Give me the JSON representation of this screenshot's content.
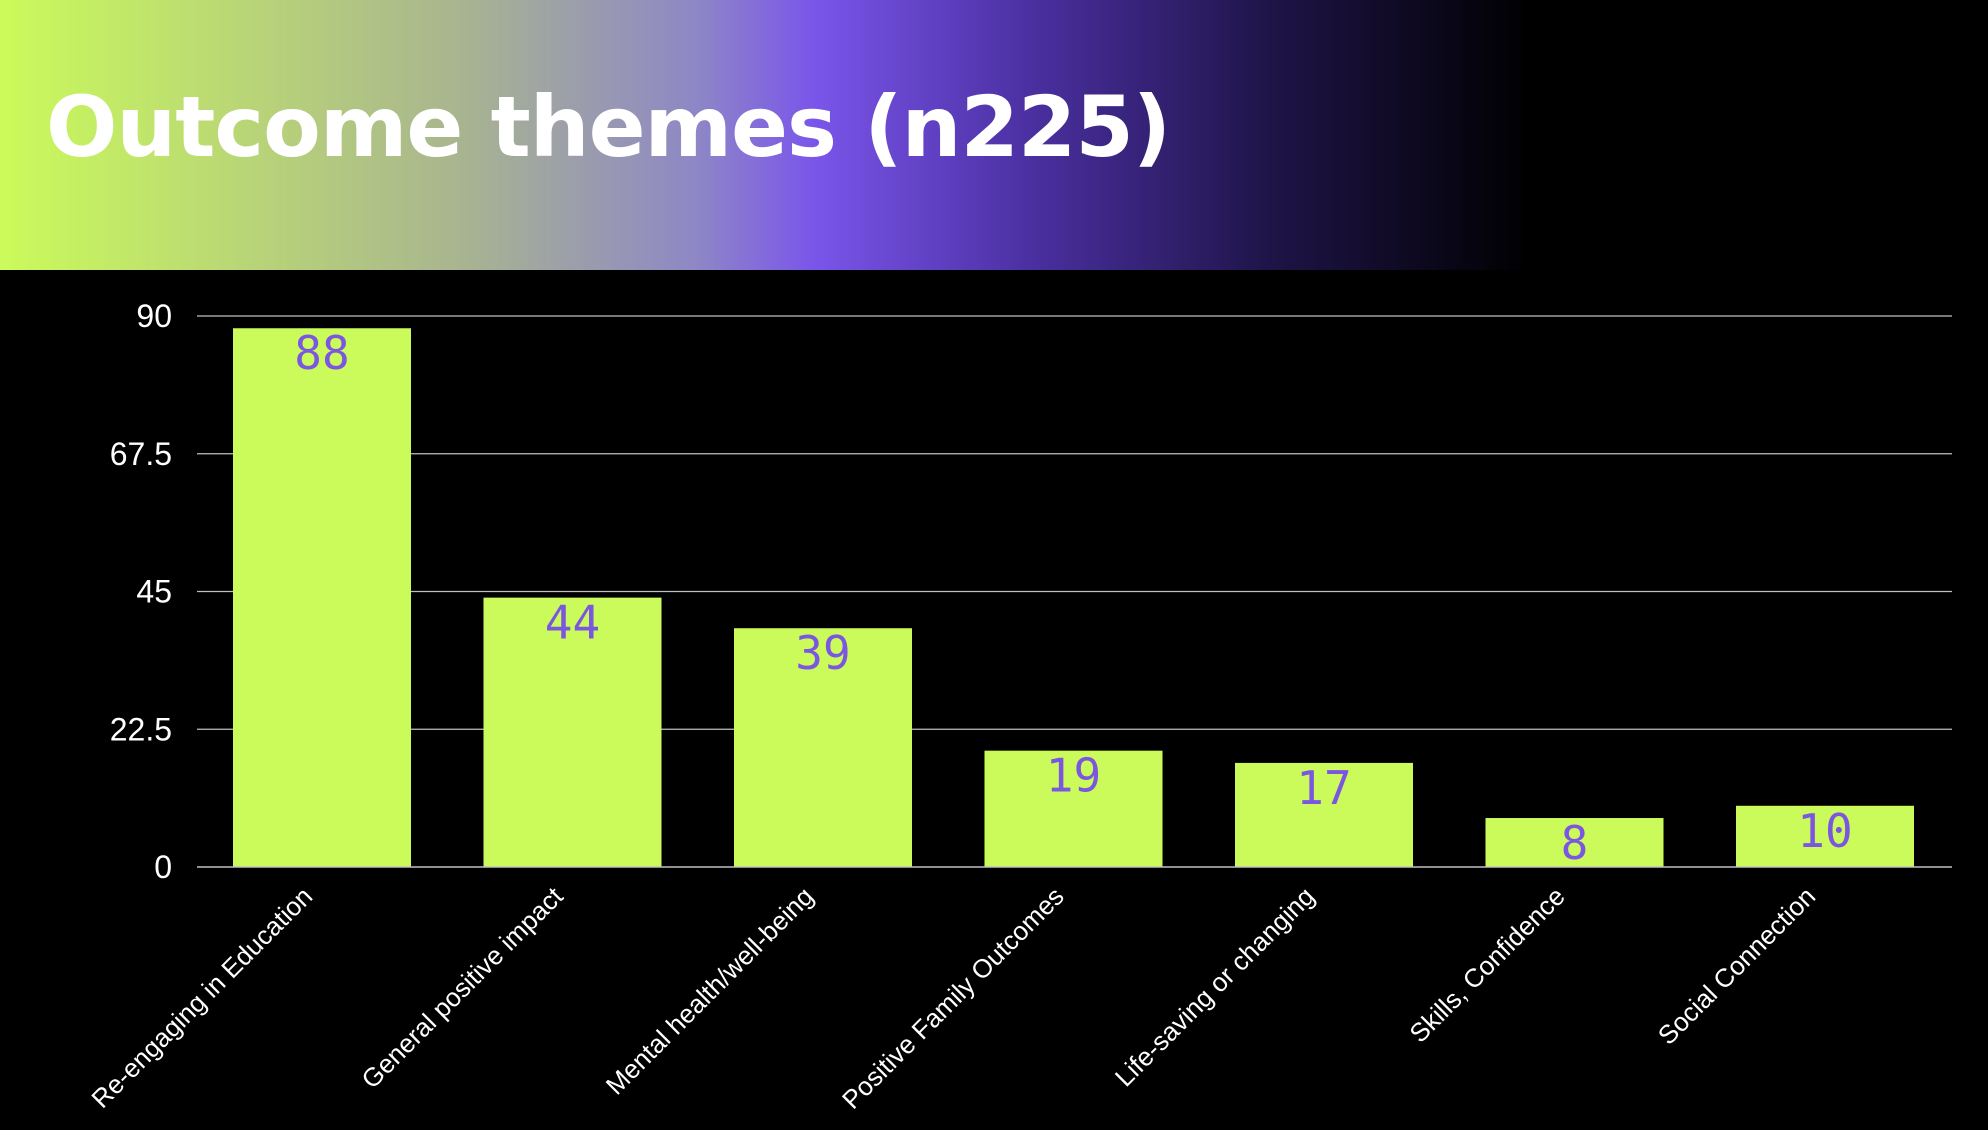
{
  "title": "Outcome themes (n225)",
  "colors": {
    "background": "#000000",
    "bar": "#cbfb5a",
    "value_label": "#7b56e0",
    "text": "#ffffff",
    "grid": "#bfbfbf",
    "gradient": [
      "#cbfb5a",
      "#7a55ea",
      "#000000"
    ]
  },
  "chart_data": {
    "type": "bar",
    "categories": [
      "Re-engaging in Education",
      "General positive impact",
      "Mental health/well-being",
      "Positive Family Outcomes",
      "Life-saving or changing",
      "Skills, Confidence",
      "Social Connection"
    ],
    "values": [
      88,
      44,
      39,
      19,
      17,
      8,
      10
    ],
    "data_labels": [
      "88",
      "44",
      "39",
      "19",
      "17",
      "8",
      "10"
    ],
    "yticks": [
      "0",
      "22.5",
      "45",
      "67.5",
      "90"
    ],
    "ylim": [
      0,
      90
    ],
    "grid": true,
    "legend": "none"
  }
}
